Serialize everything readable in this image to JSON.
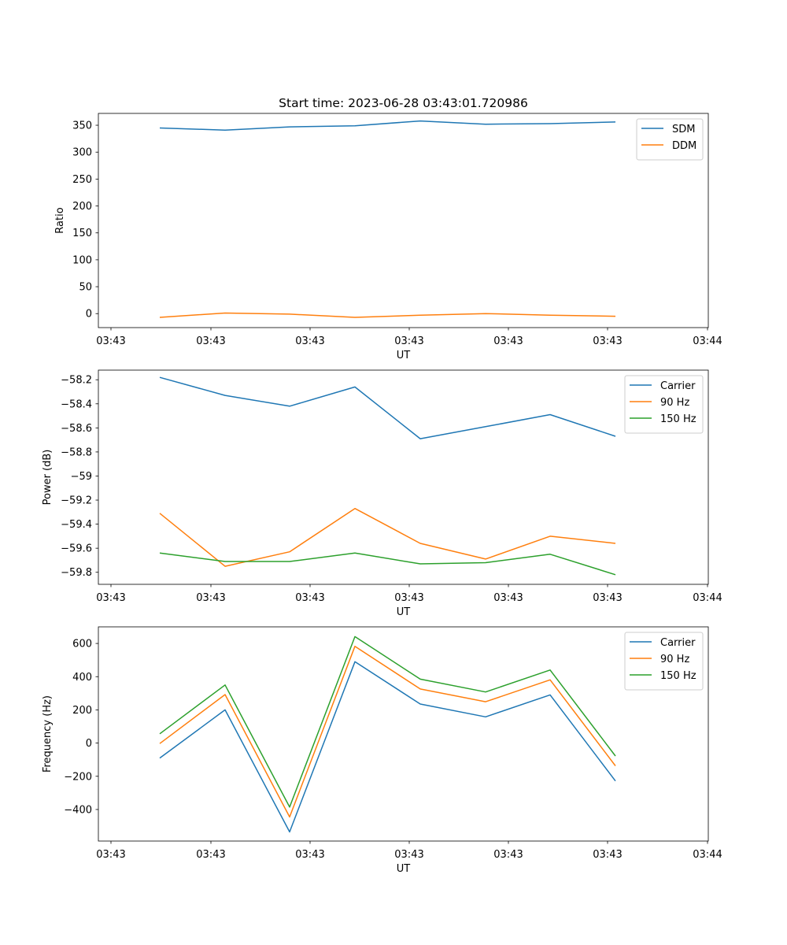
{
  "figure_title": "Start time: 2023-06-28 03:43:01.720986",
  "chart_data": [
    {
      "type": "line",
      "xlabel": "UT",
      "ylabel": "Ratio",
      "xticks": [
        "03:43",
        "03:43",
        "03:43",
        "03:43",
        "03:43",
        "03:43",
        "03:44"
      ],
      "ylim": [
        -26,
        372
      ],
      "yticks": [
        0,
        50,
        100,
        150,
        200,
        250,
        300,
        350
      ],
      "legend_position": "top-right",
      "series": [
        {
          "name": "SDM",
          "color": "#1f77b4",
          "values": [
            345,
            341,
            347,
            349,
            358,
            352,
            353,
            356
          ]
        },
        {
          "name": "DDM",
          "color": "#ff7f0e",
          "values": [
            -7,
            1,
            -1,
            -7,
            -3,
            0,
            -3,
            -5
          ]
        }
      ]
    },
    {
      "type": "line",
      "xlabel": "UT",
      "ylabel": "Power (dB)",
      "xticks": [
        "03:43",
        "03:43",
        "03:43",
        "03:43",
        "03:43",
        "03:43",
        "03:44"
      ],
      "ylim": [
        -59.9,
        -58.12
      ],
      "yticks": [
        -58.2,
        -58.4,
        -58.6,
        -58.8,
        -59.0,
        -59.2,
        -59.4,
        -59.6,
        -59.8
      ],
      "legend_position": "top-right",
      "series": [
        {
          "name": "Carrier",
          "color": "#1f77b4",
          "values": [
            -58.18,
            -58.33,
            -58.42,
            -58.26,
            -58.69,
            -58.59,
            -58.49,
            -58.67
          ]
        },
        {
          "name": "90 Hz",
          "color": "#ff7f0e",
          "values": [
            -59.31,
            -59.75,
            -59.63,
            -59.27,
            -59.56,
            -59.69,
            -59.5,
            -59.56
          ]
        },
        {
          "name": "150 Hz",
          "color": "#2ca02c",
          "values": [
            -59.64,
            -59.71,
            -59.71,
            -59.64,
            -59.73,
            -59.72,
            -59.65,
            -59.82
          ]
        }
      ]
    },
    {
      "type": "line",
      "xlabel": "UT",
      "ylabel": "Frequency (Hz)",
      "xticks": [
        "03:43",
        "03:43",
        "03:43",
        "03:43",
        "03:43",
        "03:43",
        "03:44"
      ],
      "ylim": [
        -590,
        700
      ],
      "yticks": [
        -400,
        -200,
        0,
        200,
        400,
        600
      ],
      "legend_position": "top-right",
      "series": [
        {
          "name": "Carrier",
          "color": "#1f77b4",
          "values": [
            -90,
            200,
            -535,
            490,
            235,
            158,
            290,
            -228
          ]
        },
        {
          "name": "90 Hz",
          "color": "#ff7f0e",
          "values": [
            -3,
            292,
            -445,
            583,
            326,
            249,
            381,
            -137
          ]
        },
        {
          "name": "150 Hz",
          "color": "#2ca02c",
          "values": [
            56,
            350,
            -385,
            641,
            385,
            308,
            440,
            -78
          ]
        }
      ]
    }
  ]
}
